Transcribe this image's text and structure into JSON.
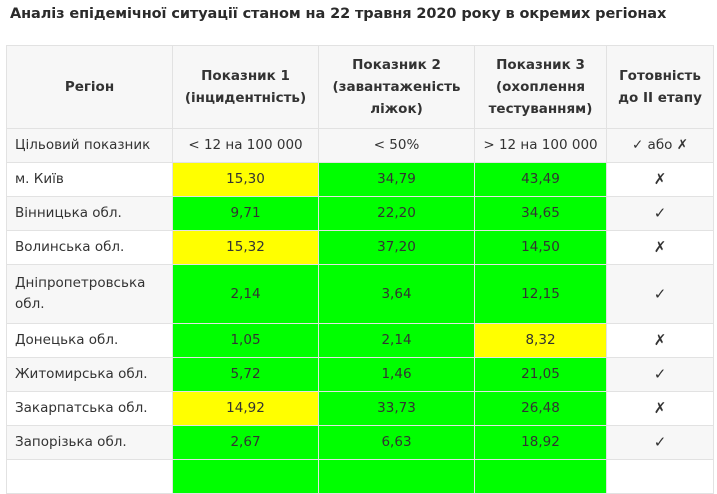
{
  "title": "Аналіз епідемічної ситуації станом на 22 травня 2020 року в окремих регіонах",
  "colors": {
    "green": "#00ff00",
    "yellow": "#ffff00"
  },
  "headers": {
    "region": "Регіон",
    "ind1": "Показник 1 (інцидентність)",
    "ind2": "Показник 2 (завантаженість ліжок)",
    "ind3": "Показник 3 (охоплення тестуванням)",
    "ready": "Готовність до II етапу"
  },
  "target": {
    "label": "Цільовий показник",
    "ind1": "< 12 на 100 000",
    "ind2": "< 50%",
    "ind3": "> 12 на 100 000",
    "ready": "✓ або ✗"
  },
  "rows": [
    {
      "region": "м. Київ",
      "ind1": "15,30",
      "ind2": "34,79",
      "ind3": "43,49",
      "ready": "✗"
    },
    {
      "region": "Вінницька обл.",
      "ind1": "9,71",
      "ind2": "22,20",
      "ind3": "34,65",
      "ready": "✓"
    },
    {
      "region": "Волинська обл.",
      "ind1": "15,32",
      "ind2": "37,20",
      "ind3": "14,50",
      "ready": "✗"
    },
    {
      "region": "Дніпропетровська обл.",
      "ind1": "2,14",
      "ind2": "3,64",
      "ind3": "12,15",
      "ready": "✓"
    },
    {
      "region": "Донецька обл.",
      "ind1": "1,05",
      "ind2": "2,14",
      "ind3": "8,32",
      "ready": "✗"
    },
    {
      "region": "Житомирська обл.",
      "ind1": "5,72",
      "ind2": "1,46",
      "ind3": "21,05",
      "ready": "✓"
    },
    {
      "region": "Закарпатська обл.",
      "ind1": "14,92",
      "ind2": "33,73",
      "ind3": "26,48",
      "ready": "✗"
    },
    {
      "region": "Запорізька обл.",
      "ind1": "2,67",
      "ind2": "6,63",
      "ind3": "18,92",
      "ready": "✓"
    }
  ]
}
